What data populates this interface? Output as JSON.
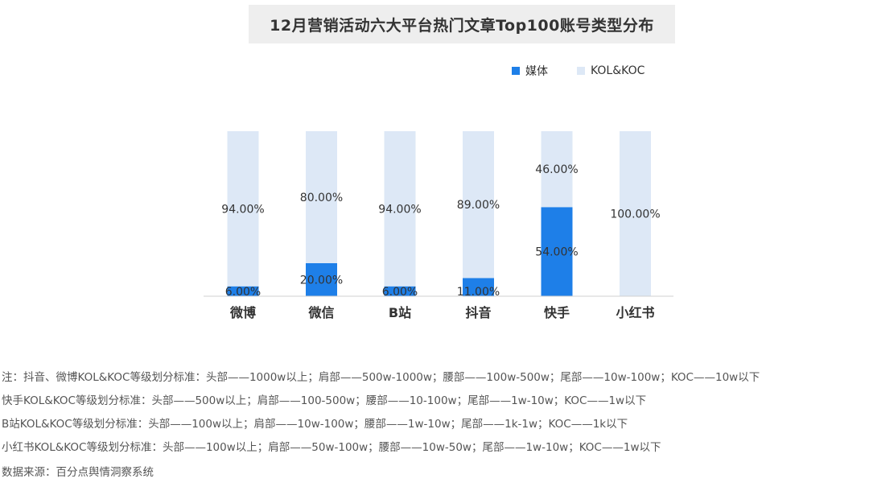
{
  "chart_data": {
    "type": "bar",
    "stacked": true,
    "title": "12月营销活动六大平台热门文章Top100账号类型分布",
    "categories": [
      "微博",
      "微信",
      "B站",
      "抖音",
      "快手",
      "小红书"
    ],
    "series": [
      {
        "name": "媒体",
        "color": "#1e7fe8",
        "values": [
          6,
          20,
          6,
          11,
          54,
          0
        ],
        "labels": [
          "6.00%",
          "20.00%",
          "6.00%",
          "11.00%",
          "54.00%",
          ""
        ]
      },
      {
        "name": "KOL&KOC",
        "color": "#dde8f6",
        "values": [
          94,
          80,
          94,
          89,
          46,
          100
        ],
        "labels": [
          "94.00%",
          "80.00%",
          "94.00%",
          "89.00%",
          "46.00%",
          "100.00%"
        ]
      }
    ],
    "ylim": [
      0,
      100
    ],
    "legend": "top-right",
    "grid": false
  },
  "notes": [
    "注：抖音、微博KOL&KOC等级划分标准：头部——1000w以上；肩部——500w-1000w；腰部——100w-500w；尾部——10w-100w；KOC——10w以下",
    "快手KOL&KOC等级划分标准：头部——500w以上；肩部——100-500w；腰部——10-100w；尾部——1w-10w；KOC——1w以下",
    "B站KOL&KOC等级划分标准：头部——100w以上；肩部——10w-100w；腰部——1w-10w；尾部——1k-1w；KOC——1k以下",
    "小红书KOL&KOC等级划分标准：头部——100w以上；肩部——50w-100w；腰部——10w-50w；尾部——1w-10w；KOC——1w以下"
  ],
  "source": "数据来源：百分点舆情洞察系统"
}
